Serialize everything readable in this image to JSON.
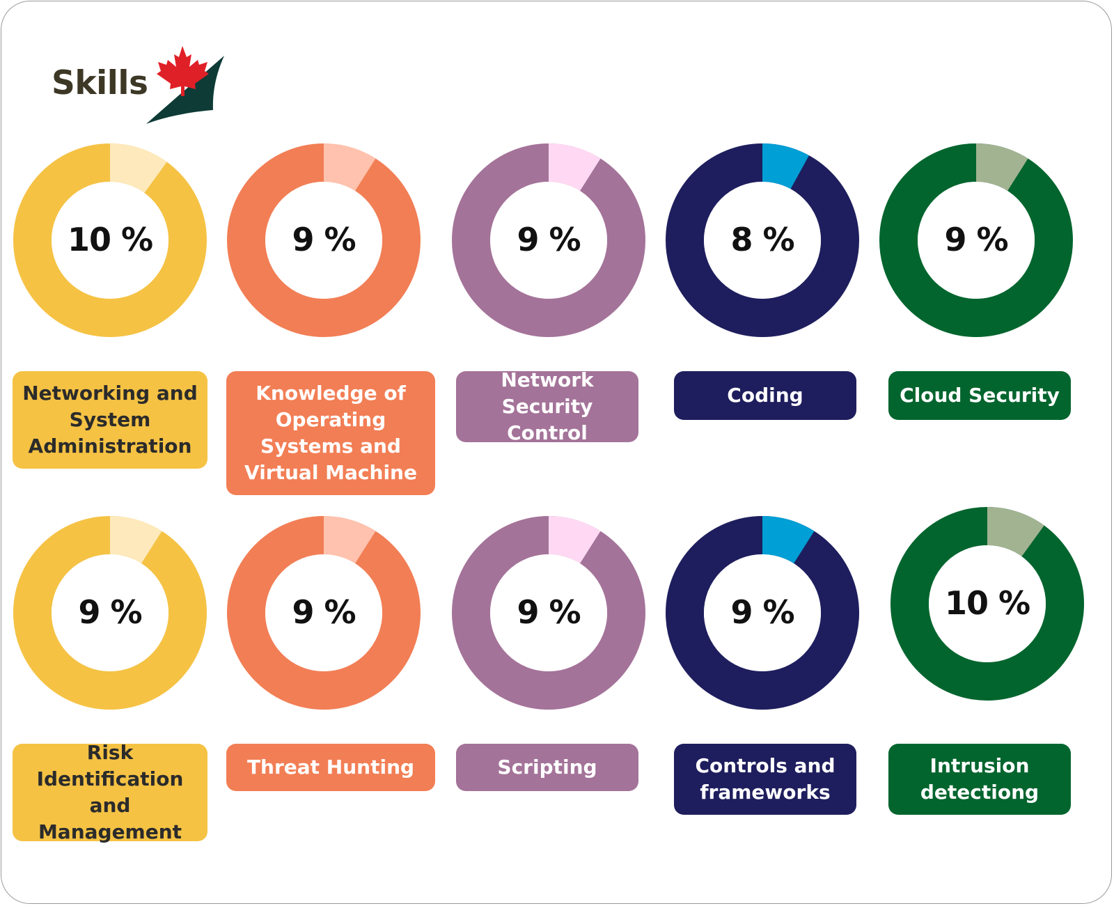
{
  "brand": {
    "name": "Skills",
    "leaf_color": "#e02027",
    "swoosh_color": "#0e3b36"
  },
  "chart_data": {
    "type": "pie",
    "rows": [
      [
        {
          "label": "Networking and System Administration",
          "value": 10,
          "display": "10 %",
          "base": "#f5c244",
          "accent": "#fde9bb",
          "text": "#2b2b2b"
        },
        {
          "label": "Knowledge of Operating Systems and Virtual Machine",
          "value": 9,
          "display": "9 %",
          "base": "#f27e55",
          "accent": "#fec2ae",
          "text": "#ffffff"
        },
        {
          "label": "Network Security Control",
          "value": 9,
          "display": "9 %",
          "base": "#a47399",
          "accent": "#ffd9f3",
          "text": "#ffffff"
        },
        {
          "label": "Coding",
          "value": 8,
          "display": "8 %",
          "base": "#1e1e5e",
          "accent": "#009fd5",
          "text": "#ffffff"
        },
        {
          "label": "Cloud Security",
          "value": 9,
          "display": "9 %",
          "base": "#03652e",
          "accent": "#a2b392",
          "text": "#ffffff"
        }
      ],
      [
        {
          "label": "Risk Identification and Management",
          "value": 9,
          "display": "9 %",
          "base": "#f5c244",
          "accent": "#fde9bb",
          "text": "#2b2b2b"
        },
        {
          "label": "Threat Hunting",
          "value": 9,
          "display": "9 %",
          "base": "#f27e55",
          "accent": "#fec2ae",
          "text": "#ffffff"
        },
        {
          "label": "Scripting",
          "value": 9,
          "display": "9 %",
          "base": "#a47399",
          "accent": "#ffd9f3",
          "text": "#ffffff"
        },
        {
          "label": "Controls and frameworks",
          "value": 9,
          "display": "9 %",
          "base": "#1e1e5e",
          "accent": "#009fd5",
          "text": "#ffffff"
        },
        {
          "label": "Intrusion detectiong",
          "value": 10,
          "display": "10 %",
          "base": "#03652e",
          "accent": "#a2b392",
          "text": "#ffffff"
        }
      ]
    ]
  }
}
